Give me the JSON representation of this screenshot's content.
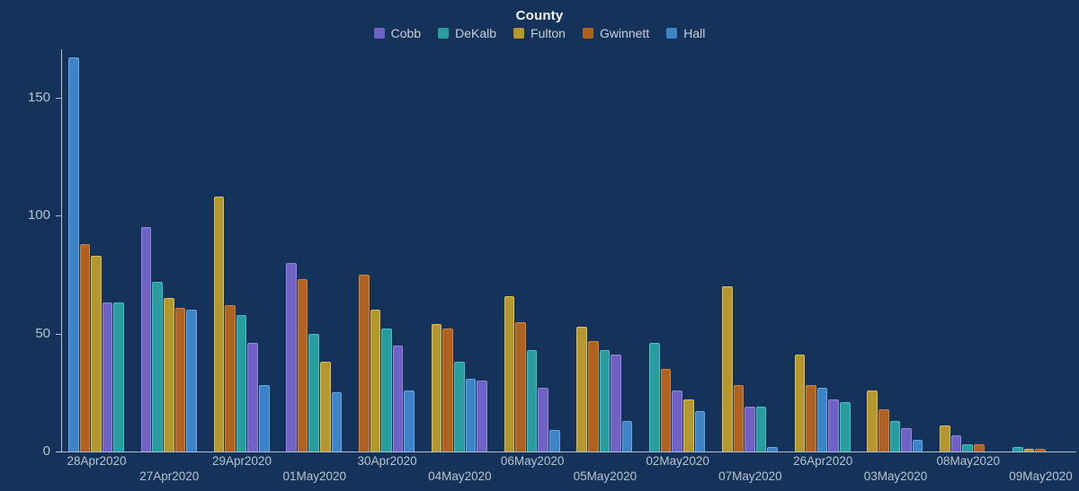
{
  "header": {
    "title": "County"
  },
  "colors": {
    "background": "#15335a",
    "axis": "#ced8e4",
    "tick_label": "#b7c3cf",
    "x_label": "#b7c3cf",
    "title": "#f2f6fa",
    "legend_label": "#c6d0da"
  },
  "chart_data": {
    "type": "bar",
    "title": "County",
    "xlabel": "",
    "ylabel": "",
    "grid": false,
    "legend_position": "top",
    "y_ticks": [
      0,
      50,
      100,
      150
    ],
    "ylim": [
      0,
      170
    ],
    "series": [
      {
        "name": "Cobb",
        "color": "#7061c5",
        "border": "#9588dd"
      },
      {
        "name": "DeKalb",
        "color": "#299d9e",
        "border": "#43c3c4"
      },
      {
        "name": "Fulton",
        "color": "#b4982f",
        "border": "#d9c253"
      },
      {
        "name": "Gwinnett",
        "color": "#b06222",
        "border": "#d1853b"
      },
      {
        "name": "Hall",
        "color": "#3c83c7",
        "border": "#66a9e6"
      }
    ],
    "groups": [
      {
        "label": "28Apr2020",
        "label_row": "upper",
        "bars": [
          {
            "series": "Hall",
            "value": 167
          },
          {
            "series": "Gwinnett",
            "value": 88
          },
          {
            "series": "Fulton",
            "value": 83
          },
          {
            "series": "Cobb",
            "value": 63
          },
          {
            "series": "DeKalb",
            "value": 63
          }
        ]
      },
      {
        "label": "27Apr2020",
        "label_row": "lower",
        "bars": [
          {
            "series": "Cobb",
            "value": 95
          },
          {
            "series": "DeKalb",
            "value": 72
          },
          {
            "series": "Fulton",
            "value": 65
          },
          {
            "series": "Gwinnett",
            "value": 61
          },
          {
            "series": "Hall",
            "value": 60
          }
        ]
      },
      {
        "label": "29Apr2020",
        "label_row": "upper",
        "bars": [
          {
            "series": "Fulton",
            "value": 108
          },
          {
            "series": "Gwinnett",
            "value": 62
          },
          {
            "series": "DeKalb",
            "value": 58
          },
          {
            "series": "Cobb",
            "value": 46
          },
          {
            "series": "Hall",
            "value": 28
          }
        ]
      },
      {
        "label": "01May2020",
        "label_row": "lower",
        "bars": [
          {
            "series": "Cobb",
            "value": 80
          },
          {
            "series": "Gwinnett",
            "value": 73
          },
          {
            "series": "DeKalb",
            "value": 50
          },
          {
            "series": "Fulton",
            "value": 38
          },
          {
            "series": "Hall",
            "value": 25
          }
        ]
      },
      {
        "label": "30Apr2020",
        "label_row": "upper",
        "bars": [
          {
            "series": "Gwinnett",
            "value": 75
          },
          {
            "series": "Fulton",
            "value": 60
          },
          {
            "series": "DeKalb",
            "value": 52
          },
          {
            "series": "Cobb",
            "value": 45
          },
          {
            "series": "Hall",
            "value": 26
          }
        ]
      },
      {
        "label": "04May2020",
        "label_row": "lower",
        "bars": [
          {
            "series": "Fulton",
            "value": 54
          },
          {
            "series": "Gwinnett",
            "value": 52
          },
          {
            "series": "DeKalb",
            "value": 38
          },
          {
            "series": "Hall",
            "value": 31
          },
          {
            "series": "Cobb",
            "value": 30
          }
        ]
      },
      {
        "label": "06May2020",
        "label_row": "upper",
        "bars": [
          {
            "series": "Fulton",
            "value": 66
          },
          {
            "series": "Gwinnett",
            "value": 55
          },
          {
            "series": "DeKalb",
            "value": 43
          },
          {
            "series": "Cobb",
            "value": 27
          },
          {
            "series": "Hall",
            "value": 9
          }
        ]
      },
      {
        "label": "05May2020",
        "label_row": "lower",
        "bars": [
          {
            "series": "Fulton",
            "value": 53
          },
          {
            "series": "Gwinnett",
            "value": 47
          },
          {
            "series": "DeKalb",
            "value": 43
          },
          {
            "series": "Cobb",
            "value": 41
          },
          {
            "series": "Hall",
            "value": 13
          }
        ]
      },
      {
        "label": "02May2020",
        "label_row": "upper",
        "bars": [
          {
            "series": "DeKalb",
            "value": 46
          },
          {
            "series": "Gwinnett",
            "value": 35
          },
          {
            "series": "Cobb",
            "value": 26
          },
          {
            "series": "Fulton",
            "value": 22
          },
          {
            "series": "Hall",
            "value": 17
          }
        ]
      },
      {
        "label": "07May2020",
        "label_row": "lower",
        "bars": [
          {
            "series": "Fulton",
            "value": 70
          },
          {
            "series": "Gwinnett",
            "value": 28
          },
          {
            "series": "Cobb",
            "value": 19
          },
          {
            "series": "DeKalb",
            "value": 19
          },
          {
            "series": "Hall",
            "value": 2
          }
        ]
      },
      {
        "label": "26Apr2020",
        "label_row": "upper",
        "bars": [
          {
            "series": "Fulton",
            "value": 41
          },
          {
            "series": "Gwinnett",
            "value": 28
          },
          {
            "series": "Hall",
            "value": 27
          },
          {
            "series": "Cobb",
            "value": 22
          },
          {
            "series": "DeKalb",
            "value": 21
          }
        ]
      },
      {
        "label": "03May2020",
        "label_row": "lower",
        "bars": [
          {
            "series": "Fulton",
            "value": 26
          },
          {
            "series": "Gwinnett",
            "value": 18
          },
          {
            "series": "DeKalb",
            "value": 13
          },
          {
            "series": "Cobb",
            "value": 10
          },
          {
            "series": "Hall",
            "value": 5
          }
        ]
      },
      {
        "label": "08May2020",
        "label_row": "upper",
        "bars": [
          {
            "series": "Fulton",
            "value": 11
          },
          {
            "series": "Cobb",
            "value": 7
          },
          {
            "series": "DeKalb",
            "value": 3
          },
          {
            "series": "Gwinnett",
            "value": 3
          }
        ]
      },
      {
        "label": "09May2020",
        "label_row": "lower",
        "bars": [
          {
            "series": "DeKalb",
            "value": 2
          },
          {
            "series": "Fulton",
            "value": 1
          },
          {
            "series": "Gwinnett",
            "value": 1
          }
        ]
      }
    ]
  }
}
